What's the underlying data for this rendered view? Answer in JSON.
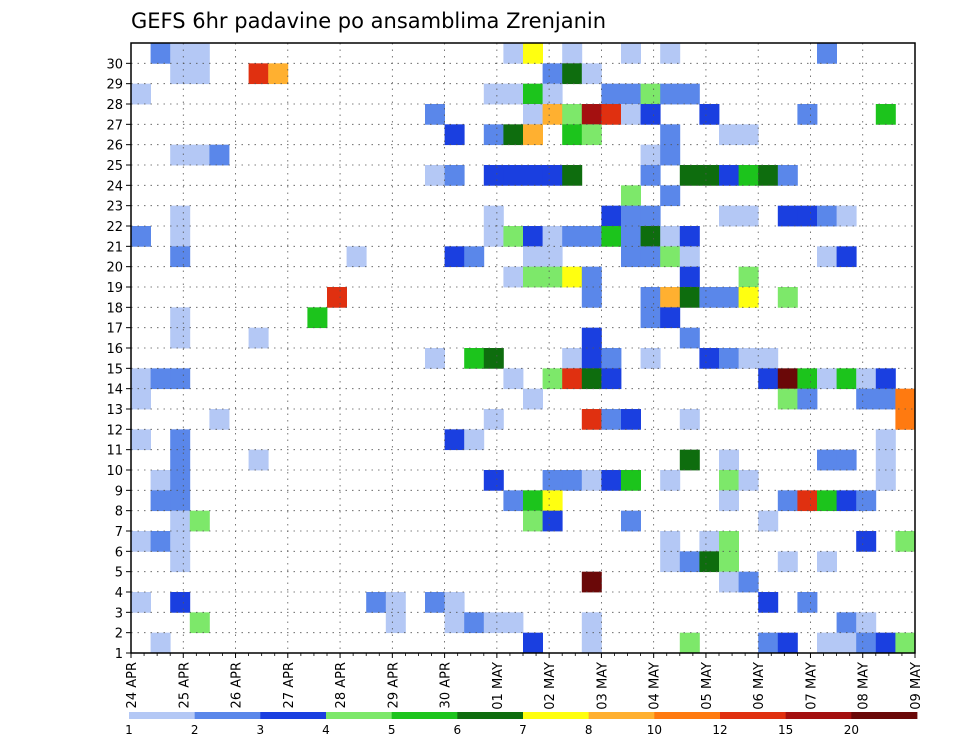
{
  "chart_data": {
    "type": "heatmap",
    "title": "GEFS 6hr padavine po ansamblima Zrenjanin",
    "x_ticks": [
      "24 APR",
      "25 APR",
      "26 APR",
      "27 APR",
      "28 APR",
      "29 APR",
      "30 APR",
      "01 MAY",
      "02 MAY",
      "03 MAY",
      "04 MAY",
      "05 MAY",
      "06 MAY",
      "07 MAY",
      "08 MAY",
      "09 MAY"
    ],
    "y_ticks": [
      "1",
      "2",
      "3",
      "4",
      "5",
      "6",
      "7",
      "8",
      "9",
      "10",
      "11",
      "12",
      "13",
      "14",
      "15",
      "16",
      "17",
      "18",
      "19",
      "20",
      "21",
      "22",
      "23",
      "24",
      "25",
      "26",
      "27",
      "28",
      "29",
      "30"
    ],
    "x_steps": 60,
    "y_members": 30,
    "grid": "dotted",
    "colorbar": {
      "labels": [
        "1",
        "2",
        "3",
        "4",
        "5",
        "6",
        "7",
        "8",
        "10",
        "12",
        "15",
        "20"
      ],
      "colors": [
        "#b4c8f5",
        "#5a87ea",
        "#1a3fe0",
        "#7de86a",
        "#1cc41c",
        "#0e6d0e",
        "#ffff10",
        "#ffb030",
        "#ff7a10",
        "#e03010",
        "#a41010",
        "#6a0808"
      ]
    },
    "cells": [
      [
        1,
        30,
        2
      ],
      [
        2,
        30,
        1
      ],
      [
        3,
        30,
        1
      ],
      [
        19,
        30,
        1
      ],
      [
        20,
        30,
        7
      ],
      [
        22,
        30,
        1
      ],
      [
        25,
        30,
        1
      ],
      [
        27,
        30,
        1
      ],
      [
        35,
        30,
        2
      ],
      [
        2,
        29,
        1
      ],
      [
        3,
        29,
        1
      ],
      [
        6,
        29,
        10
      ],
      [
        7,
        29,
        8
      ],
      [
        21,
        29,
        2
      ],
      [
        22,
        29,
        6
      ],
      [
        23,
        29,
        1
      ],
      [
        0,
        28,
        1
      ],
      [
        18,
        28,
        1
      ],
      [
        19,
        28,
        1
      ],
      [
        20,
        28,
        5
      ],
      [
        21,
        28,
        1
      ],
      [
        24,
        28,
        2
      ],
      [
        25,
        28,
        2
      ],
      [
        26,
        28,
        4
      ],
      [
        27,
        28,
        2
      ],
      [
        28,
        28,
        2
      ],
      [
        15,
        27,
        2
      ],
      [
        20,
        27,
        1
      ],
      [
        21,
        27,
        8
      ],
      [
        22,
        27,
        4
      ],
      [
        23,
        27,
        11
      ],
      [
        24,
        27,
        10
      ],
      [
        25,
        27,
        1
      ],
      [
        26,
        27,
        3
      ],
      [
        29,
        27,
        3
      ],
      [
        34,
        27,
        2
      ],
      [
        38,
        27,
        5
      ],
      [
        16,
        26,
        3
      ],
      [
        18,
        26,
        2
      ],
      [
        19,
        26,
        6
      ],
      [
        20,
        26,
        8
      ],
      [
        22,
        26,
        5
      ],
      [
        23,
        26,
        4
      ],
      [
        27,
        26,
        2
      ],
      [
        30,
        26,
        1
      ],
      [
        31,
        26,
        1
      ],
      [
        2,
        25,
        1
      ],
      [
        3,
        25,
        1
      ],
      [
        4,
        25,
        2
      ],
      [
        26,
        25,
        1
      ],
      [
        27,
        25,
        2
      ],
      [
        15,
        24,
        1
      ],
      [
        16,
        24,
        2
      ],
      [
        18,
        24,
        3
      ],
      [
        19,
        24,
        3
      ],
      [
        20,
        24,
        3
      ],
      [
        21,
        24,
        3
      ],
      [
        22,
        24,
        6
      ],
      [
        26,
        24,
        2
      ],
      [
        28,
        24,
        6
      ],
      [
        29,
        24,
        6
      ],
      [
        30,
        24,
        3
      ],
      [
        31,
        24,
        5
      ],
      [
        32,
        24,
        6
      ],
      [
        33,
        24,
        2
      ],
      [
        25,
        23,
        4
      ],
      [
        27,
        23,
        2
      ],
      [
        2,
        22,
        1
      ],
      [
        18,
        22,
        1
      ],
      [
        24,
        22,
        3
      ],
      [
        25,
        22,
        2
      ],
      [
        26,
        22,
        2
      ],
      [
        30,
        22,
        1
      ],
      [
        31,
        22,
        1
      ],
      [
        33,
        22,
        3
      ],
      [
        34,
        22,
        3
      ],
      [
        35,
        22,
        2
      ],
      [
        36,
        22,
        1
      ],
      [
        0,
        21,
        2
      ],
      [
        2,
        21,
        1
      ],
      [
        18,
        21,
        1
      ],
      [
        19,
        21,
        4
      ],
      [
        20,
        21,
        3
      ],
      [
        21,
        21,
        1
      ],
      [
        22,
        21,
        2
      ],
      [
        23,
        21,
        2
      ],
      [
        24,
        21,
        5
      ],
      [
        25,
        21,
        2
      ],
      [
        26,
        21,
        6
      ],
      [
        27,
        21,
        1
      ],
      [
        28,
        21,
        3
      ],
      [
        2,
        20,
        2
      ],
      [
        11,
        20,
        1
      ],
      [
        16,
        20,
        3
      ],
      [
        17,
        20,
        2
      ],
      [
        20,
        20,
        1
      ],
      [
        21,
        20,
        1
      ],
      [
        25,
        20,
        2
      ],
      [
        26,
        20,
        2
      ],
      [
        27,
        20,
        4
      ],
      [
        28,
        20,
        1
      ],
      [
        35,
        20,
        1
      ],
      [
        36,
        20,
        3
      ],
      [
        19,
        19,
        1
      ],
      [
        20,
        19,
        4
      ],
      [
        21,
        19,
        4
      ],
      [
        22,
        19,
        7
      ],
      [
        23,
        19,
        2
      ],
      [
        28,
        19,
        3
      ],
      [
        31,
        19,
        4
      ],
      [
        10,
        18,
        10
      ],
      [
        23,
        18,
        2
      ],
      [
        26,
        18,
        2
      ],
      [
        27,
        18,
        8
      ],
      [
        28,
        18,
        6
      ],
      [
        29,
        18,
        2
      ],
      [
        30,
        18,
        2
      ],
      [
        31,
        18,
        7
      ],
      [
        33,
        18,
        4
      ],
      [
        9,
        17,
        5
      ],
      [
        2,
        17,
        1
      ],
      [
        26,
        17,
        2
      ],
      [
        27,
        17,
        3
      ],
      [
        2,
        16,
        1
      ],
      [
        6,
        16,
        1
      ],
      [
        23,
        16,
        3
      ],
      [
        28,
        16,
        2
      ],
      [
        15,
        15,
        1
      ],
      [
        17,
        15,
        5
      ],
      [
        18,
        15,
        6
      ],
      [
        22,
        15,
        1
      ],
      [
        23,
        15,
        3
      ],
      [
        24,
        15,
        2
      ],
      [
        26,
        15,
        1
      ],
      [
        29,
        15,
        3
      ],
      [
        30,
        15,
        2
      ],
      [
        31,
        15,
        1
      ],
      [
        32,
        15,
        1
      ],
      [
        0,
        14,
        1
      ],
      [
        1,
        14,
        2
      ],
      [
        2,
        14,
        2
      ],
      [
        19,
        14,
        1
      ],
      [
        21,
        14,
        4
      ],
      [
        22,
        14,
        10
      ],
      [
        23,
        14,
        6
      ],
      [
        24,
        14,
        3
      ],
      [
        32,
        14,
        3
      ],
      [
        33,
        14,
        12
      ],
      [
        34,
        14,
        5
      ],
      [
        35,
        14,
        1
      ],
      [
        36,
        14,
        5
      ],
      [
        37,
        14,
        1
      ],
      [
        38,
        14,
        3
      ],
      [
        0,
        13,
        1
      ],
      [
        20,
        13,
        1
      ],
      [
        33,
        13,
        4
      ],
      [
        34,
        13,
        2
      ],
      [
        37,
        13,
        2
      ],
      [
        38,
        13,
        2
      ],
      [
        39,
        13,
        9
      ],
      [
        4,
        12,
        1
      ],
      [
        18,
        12,
        1
      ],
      [
        23,
        12,
        10
      ],
      [
        24,
        12,
        2
      ],
      [
        25,
        12,
        3
      ],
      [
        28,
        12,
        1
      ],
      [
        39,
        12,
        9
      ],
      [
        0,
        11,
        1
      ],
      [
        2,
        11,
        2
      ],
      [
        16,
        11,
        3
      ],
      [
        17,
        11,
        1
      ],
      [
        38,
        11,
        1
      ],
      [
        2,
        10,
        2
      ],
      [
        6,
        10,
        1
      ],
      [
        28,
        10,
        6
      ],
      [
        30,
        10,
        1
      ],
      [
        35,
        10,
        2
      ],
      [
        36,
        10,
        2
      ],
      [
        38,
        10,
        1
      ],
      [
        1,
        9,
        1
      ],
      [
        2,
        9,
        2
      ],
      [
        18,
        9,
        3
      ],
      [
        21,
        9,
        2
      ],
      [
        22,
        9,
        2
      ],
      [
        23,
        9,
        1
      ],
      [
        24,
        9,
        3
      ],
      [
        25,
        9,
        5
      ],
      [
        27,
        9,
        1
      ],
      [
        30,
        9,
        4
      ],
      [
        31,
        9,
        1
      ],
      [
        38,
        9,
        1
      ],
      [
        1,
        8,
        2
      ],
      [
        2,
        8,
        2
      ],
      [
        19,
        8,
        2
      ],
      [
        20,
        8,
        5
      ],
      [
        21,
        8,
        7
      ],
      [
        30,
        8,
        1
      ],
      [
        33,
        8,
        2
      ],
      [
        34,
        8,
        10
      ],
      [
        35,
        8,
        5
      ],
      [
        36,
        8,
        3
      ],
      [
        37,
        8,
        2
      ],
      [
        2,
        7,
        1
      ],
      [
        3,
        7,
        4
      ],
      [
        20,
        7,
        4
      ],
      [
        21,
        7,
        3
      ],
      [
        25,
        7,
        2
      ],
      [
        32,
        7,
        1
      ],
      [
        0,
        6,
        1
      ],
      [
        1,
        6,
        2
      ],
      [
        2,
        6,
        1
      ],
      [
        27,
        6,
        1
      ],
      [
        29,
        6,
        1
      ],
      [
        30,
        6,
        4
      ],
      [
        37,
        6,
        3
      ],
      [
        39,
        6,
        4
      ],
      [
        2,
        5,
        1
      ],
      [
        27,
        5,
        1
      ],
      [
        28,
        5,
        2
      ],
      [
        29,
        5,
        6
      ],
      [
        30,
        5,
        4
      ],
      [
        33,
        5,
        1
      ],
      [
        35,
        5,
        1
      ],
      [
        23,
        4,
        12
      ],
      [
        30,
        4,
        1
      ],
      [
        31,
        4,
        2
      ],
      [
        0,
        3,
        1
      ],
      [
        2,
        3,
        3
      ],
      [
        12,
        3,
        2
      ],
      [
        13,
        3,
        1
      ],
      [
        15,
        3,
        2
      ],
      [
        16,
        3,
        1
      ],
      [
        32,
        3,
        3
      ],
      [
        34,
        3,
        2
      ],
      [
        3,
        2,
        4
      ],
      [
        13,
        2,
        1
      ],
      [
        16,
        2,
        1
      ],
      [
        17,
        2,
        2
      ],
      [
        18,
        2,
        1
      ],
      [
        19,
        2,
        1
      ],
      [
        23,
        2,
        1
      ],
      [
        36,
        2,
        2
      ],
      [
        37,
        2,
        1
      ],
      [
        1,
        1,
        1
      ],
      [
        20,
        1,
        3
      ],
      [
        23,
        1,
        1
      ],
      [
        28,
        1,
        4
      ],
      [
        32,
        1,
        2
      ],
      [
        33,
        1,
        3
      ],
      [
        35,
        1,
        1
      ],
      [
        36,
        1,
        1
      ],
      [
        37,
        1,
        2
      ],
      [
        38,
        1,
        3
      ],
      [
        39,
        1,
        4
      ]
    ]
  }
}
